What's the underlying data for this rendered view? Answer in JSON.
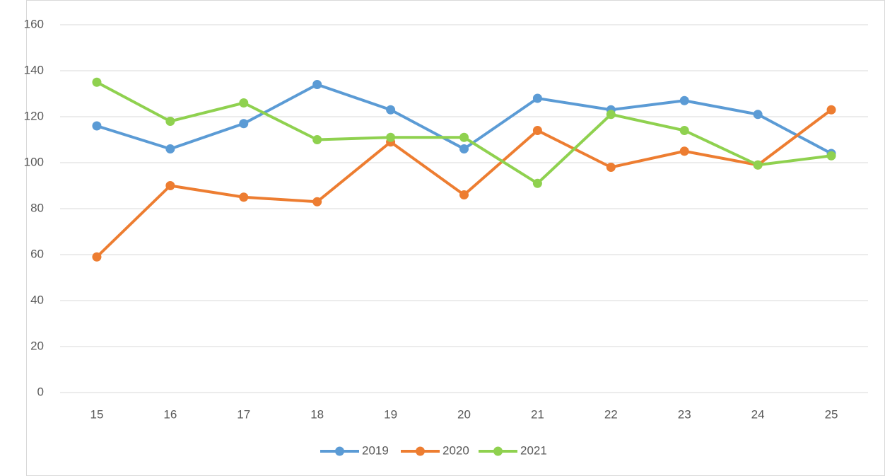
{
  "chart_data": {
    "type": "line",
    "categories": [
      "15",
      "16",
      "17",
      "18",
      "19",
      "20",
      "21",
      "22",
      "23",
      "24",
      "25"
    ],
    "series": [
      {
        "name": "2019",
        "color": "#5b9bd5",
        "values": [
          116,
          106,
          117,
          134,
          123,
          106,
          128,
          123,
          127,
          121,
          104
        ]
      },
      {
        "name": "2020",
        "color": "#ed7d31",
        "values": [
          59,
          90,
          85,
          83,
          109,
          86,
          114,
          98,
          105,
          99,
          123
        ]
      },
      {
        "name": "2021",
        "color": "#8fd14f",
        "values": [
          135,
          118,
          126,
          110,
          111,
          111,
          91,
          121,
          114,
          99,
          103
        ]
      }
    ],
    "ylim": [
      0,
      160
    ],
    "yticks": [
      0,
      20,
      40,
      60,
      80,
      100,
      120,
      140,
      160
    ],
    "grid": true,
    "legend": "bottom"
  }
}
